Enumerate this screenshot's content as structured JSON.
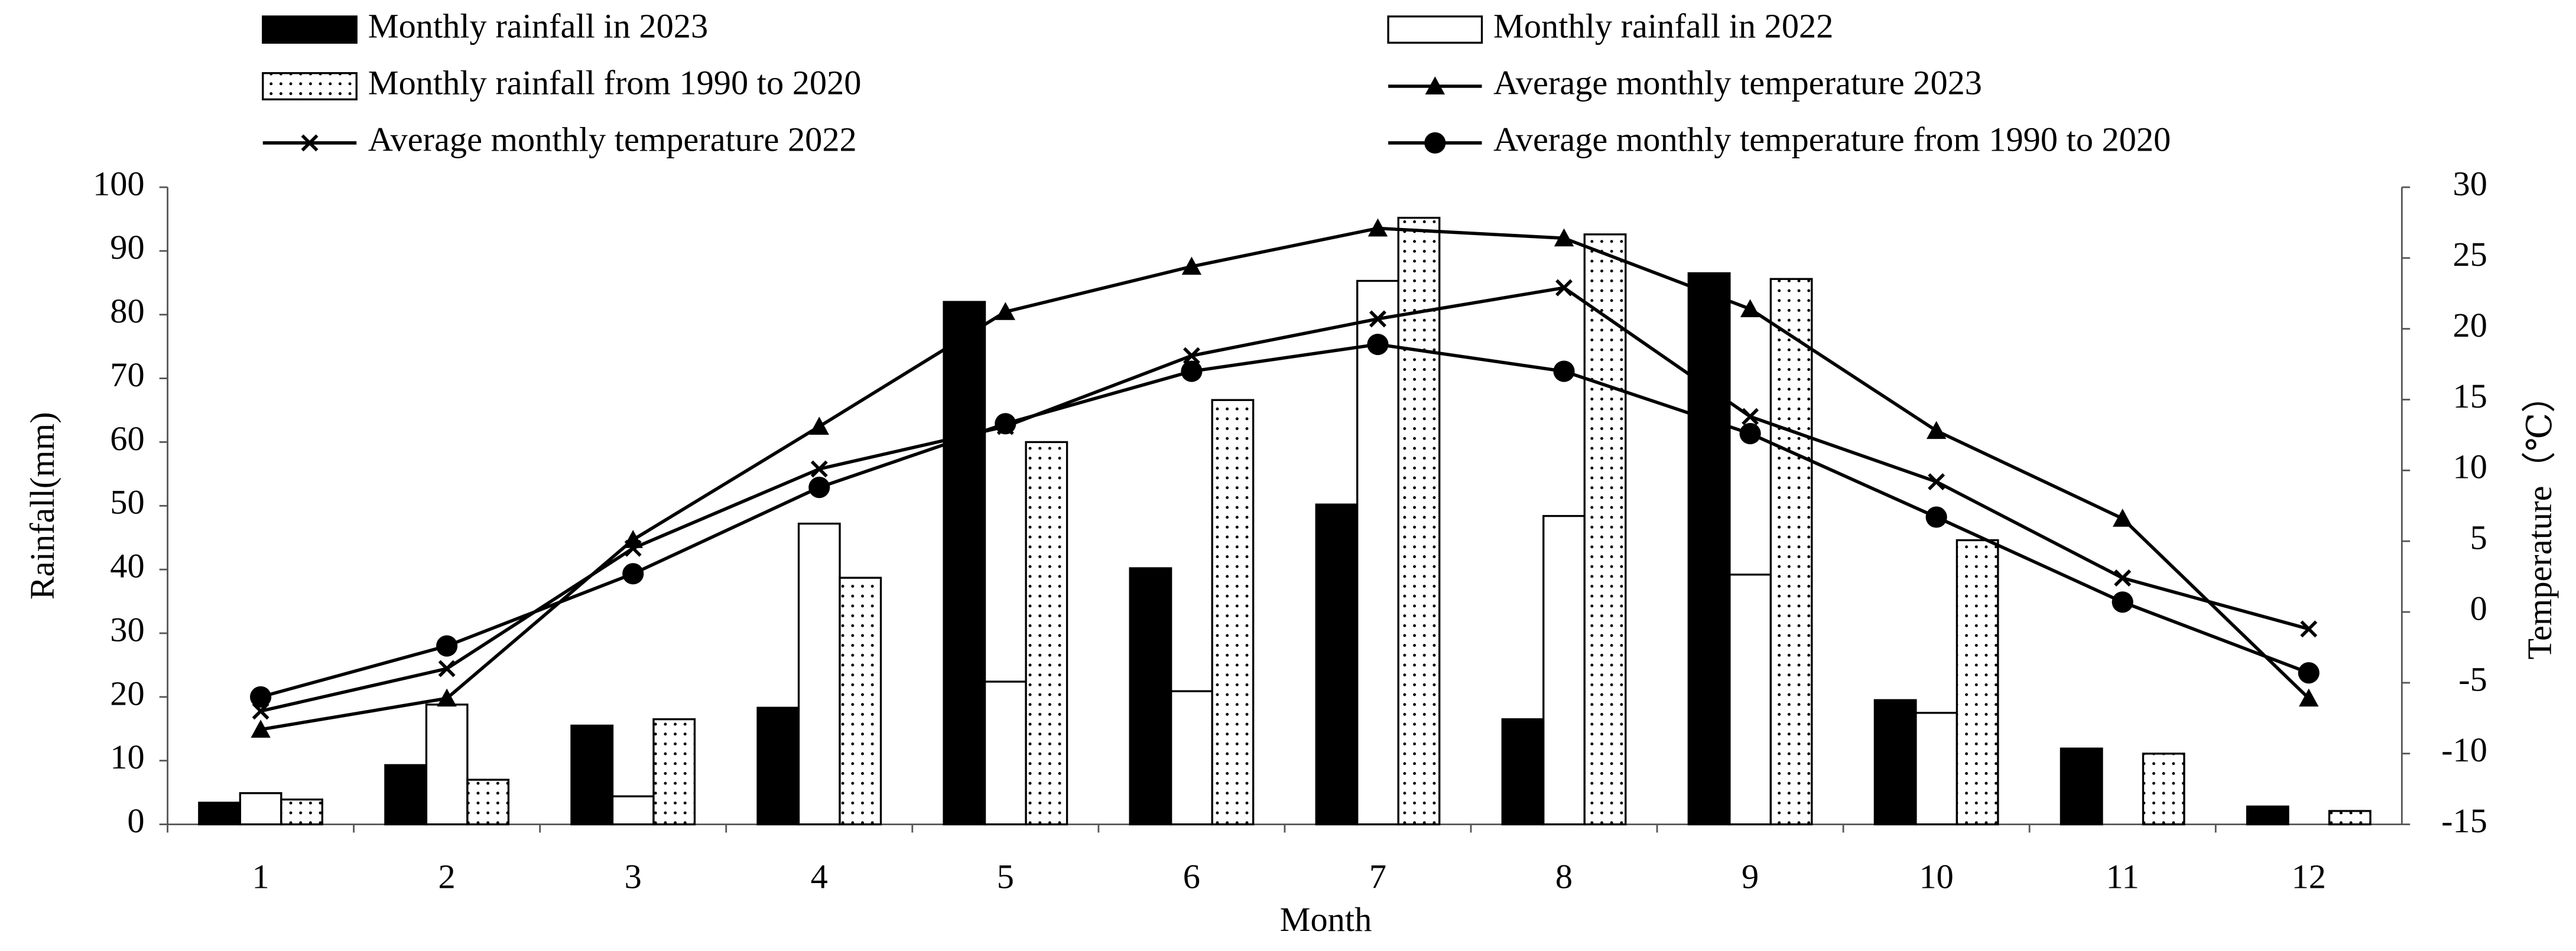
{
  "chart_data": {
    "type": "bar",
    "x_label": "Month",
    "y_label": "Rainfall(mm)",
    "y2_label": "Temperature（℃）",
    "categories": [
      "1",
      "2",
      "3",
      "4",
      "5",
      "6",
      "7",
      "8",
      "9",
      "10",
      "11",
      "12"
    ],
    "ylim": [
      0,
      100
    ],
    "yticks": [
      0,
      10,
      20,
      30,
      40,
      50,
      60,
      70,
      80,
      90,
      100
    ],
    "y2lim": [
      -15,
      30
    ],
    "y2ticks": [
      -15,
      -10,
      -5,
      0,
      5,
      10,
      15,
      20,
      25,
      30
    ],
    "grid": false,
    "series": [
      {
        "name": "Monthly rainfall in 2023",
        "type": "bar",
        "color": "#000000",
        "fill": "solid",
        "values": [
          3.4,
          9.3,
          15.5,
          18.3,
          82,
          40.2,
          50.2,
          16.5,
          86.5,
          19.5,
          11.9,
          2.8
        ]
      },
      {
        "name": "Monthly rainfall in 2022",
        "type": "bar",
        "color": "#ffffff",
        "fill": "solid",
        "values": [
          4.9,
          18.8,
          4.4,
          47.2,
          22.4,
          20.9,
          85.3,
          48.4,
          39.2,
          17.5,
          0,
          0
        ]
      },
      {
        "name": "Monthly rainfall from 1990 to 2020",
        "type": "bar",
        "color": "#ffffff",
        "fill": "dots",
        "values": [
          3.9,
          7.0,
          16.5,
          38.7,
          60,
          66.6,
          95.2,
          92.6,
          85.6,
          44.6,
          11.1,
          2.1
        ]
      },
      {
        "name": "Average monthly temperature 2023",
        "type": "line",
        "axis": "y2",
        "color": "#000000",
        "marker": "triangle",
        "values": [
          -8.3,
          -6.1,
          5.1,
          13.1,
          21.2,
          24.4,
          27.1,
          26.4,
          21.4,
          12.8,
          6.6,
          -6.1
        ]
      },
      {
        "name": "Average monthly temperature 2022",
        "type": "line",
        "axis": "y2",
        "color": "#000000",
        "marker": "x",
        "values": [
          -7.0,
          -4.0,
          4.5,
          10.1,
          13.1,
          18.1,
          20.7,
          22.9,
          13.8,
          9.2,
          2.4,
          -1.2
        ]
      },
      {
        "name": "Average monthly temperature from 1990 to 2020",
        "type": "line",
        "axis": "y2",
        "color": "#000000",
        "marker": "circle",
        "values": [
          -6.0,
          -2.4,
          2.7,
          8.8,
          13.3,
          17.0,
          18.9,
          17.0,
          12.6,
          6.7,
          0.7,
          -4.3
        ]
      }
    ]
  }
}
